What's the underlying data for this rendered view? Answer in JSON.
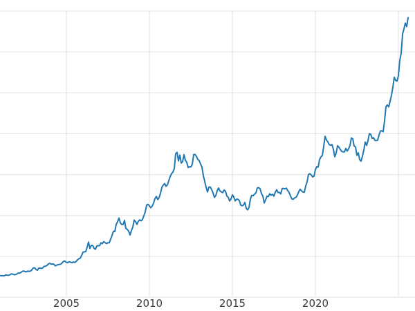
{
  "chart_data": {
    "type": "line",
    "title": "",
    "xlabel": "",
    "ylabel": "",
    "grid": true,
    "legend": false,
    "xlim": [
      2001,
      2026
    ],
    "ylim": [
      0,
      3500
    ],
    "y_grid_interval": 500,
    "x_grid_years": [
      2005,
      2010,
      2015,
      2020,
      2025
    ],
    "x_ticks": [
      {
        "year": 2005,
        "label": "2005"
      },
      {
        "year": 2010,
        "label": "2010"
      },
      {
        "year": 2015,
        "label": "2015"
      },
      {
        "year": 2020,
        "label": "2020"
      }
    ],
    "x_start_year": 2001.0,
    "x_interval_years": 0.0833333,
    "line_color": "#1f77b4",
    "grid_color": "#e3e3e3",
    "tick_label_color": "#3b3b3b",
    "background_color": "#ffffff",
    "values": [
      265,
      262,
      263,
      260,
      272,
      270,
      267,
      272,
      284,
      283,
      276,
      276,
      281,
      295,
      294,
      302,
      314,
      321,
      313,
      310,
      319,
      316,
      319,
      333,
      357,
      359,
      340,
      328,
      355,
      356,
      351,
      360,
      379,
      379,
      389,
      407,
      414,
      405,
      406,
      403,
      383,
      392,
      398,
      400,
      405,
      420,
      439,
      442,
      424,
      423,
      434,
      429,
      422,
      431,
      424,
      437,
      456,
      470,
      477,
      510,
      550,
      555,
      557,
      611,
      675,
      596,
      634,
      632,
      598,
      586,
      627,
      630,
      631,
      665,
      655,
      679,
      667,
      655,
      665,
      665,
      713,
      755,
      806,
      803,
      890,
      922,
      968,
      910,
      889,
      889,
      940,
      839,
      829,
      807,
      760,
      816,
      858,
      943,
      924,
      890,
      928,
      946,
      934,
      949,
      997,
      1043,
      1127,
      1135,
      1118,
      1095,
      1113,
      1149,
      1205,
      1233,
      1193,
      1216,
      1271,
      1342,
      1370,
      1391,
      1356,
      1373,
      1424,
      1474,
      1511,
      1529,
      1573,
      1756,
      1772,
      1666,
      1739,
      1641,
      1656,
      1743,
      1674,
      1650,
      1586,
      1597,
      1594,
      1626,
      1744,
      1747,
      1722,
      1685,
      1671,
      1627,
      1593,
      1487,
      1414,
      1343,
      1287,
      1347,
      1348,
      1316,
      1276,
      1221,
      1244,
      1301,
      1336,
      1299,
      1288,
      1279,
      1311,
      1296,
      1237,
      1222,
      1176,
      1201,
      1251,
      1227,
      1178,
      1198,
      1198,
      1181,
      1128,
      1118,
      1125,
      1159,
      1086,
      1068,
      1097,
      1200,
      1246,
      1242,
      1260,
      1276,
      1337,
      1340,
      1327,
      1267,
      1238,
      1152,
      1192,
      1234,
      1231,
      1266,
      1246,
      1260,
      1236,
      1283,
      1315,
      1280,
      1282,
      1264,
      1331,
      1330,
      1325,
      1334,
      1303,
      1281,
      1238,
      1201,
      1198,
      1215,
      1221,
      1250,
      1292,
      1320,
      1301,
      1286,
      1284,
      1359,
      1413,
      1500,
      1511,
      1495,
      1471,
      1479,
      1561,
      1597,
      1592,
      1683,
      1716,
      1732,
      1843,
      1969,
      1922,
      1900,
      1866,
      1858,
      1867,
      1808,
      1718,
      1762,
      1853,
      1835,
      1807,
      1784,
      1777,
      1777,
      1820,
      1787,
      1817,
      1856,
      1948,
      1937,
      1850,
      1837,
      1736,
      1765,
      1681,
      1664,
      1726,
      1797,
      1898,
      1856,
      1913,
      2000,
      1992,
      1943,
      1951,
      1918,
      1916,
      1921,
      1984,
      2034,
      2034,
      2025,
      2160,
      2331,
      2351,
      2327,
      2398,
      2470,
      2568,
      2690,
      2651,
      2644,
      2708,
      2897,
      2983,
      3218,
      3280,
      3353,
      3310,
      3420
    ]
  }
}
